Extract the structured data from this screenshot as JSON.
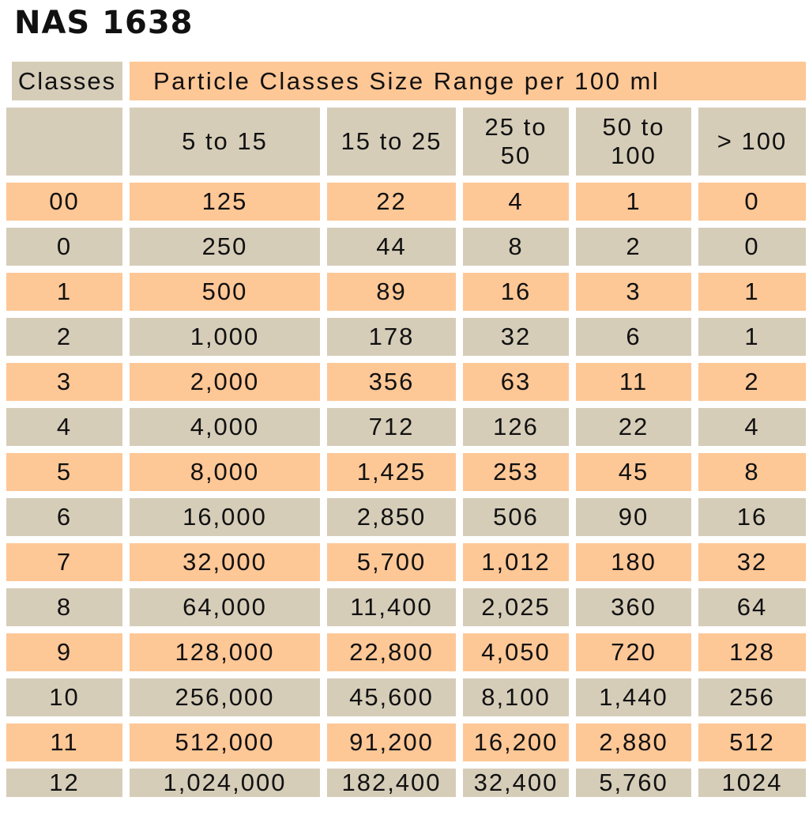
{
  "title": "NAS 1638",
  "table": {
    "header": {
      "classes": "Classes",
      "range": "Particle Classes Size Range per 100 ml"
    },
    "size_columns": [
      "5 to 15",
      "15 to 25",
      "25 to 50",
      "50 to 100",
      "> 100"
    ],
    "rows": [
      {
        "cls": "00",
        "v": [
          "125",
          "22",
          "4",
          "1",
          "0"
        ]
      },
      {
        "cls": "0",
        "v": [
          "250",
          "44",
          "8",
          "2",
          "0"
        ]
      },
      {
        "cls": "1",
        "v": [
          "500",
          "89",
          "16",
          "3",
          "1"
        ]
      },
      {
        "cls": "2",
        "v": [
          "1,000",
          "178",
          "32",
          "6",
          "1"
        ]
      },
      {
        "cls": "3",
        "v": [
          "2,000",
          "356",
          "63",
          "11",
          "2"
        ]
      },
      {
        "cls": "4",
        "v": [
          "4,000",
          "712",
          "126",
          "22",
          "4"
        ]
      },
      {
        "cls": "5",
        "v": [
          "8,000",
          "1,425",
          "253",
          "45",
          "8"
        ]
      },
      {
        "cls": "6",
        "v": [
          "16,000",
          "2,850",
          "506",
          "90",
          "16"
        ]
      },
      {
        "cls": "7",
        "v": [
          "32,000",
          "5,700",
          "1,012",
          "180",
          "32"
        ]
      },
      {
        "cls": "8",
        "v": [
          "64,000",
          "11,400",
          "2,025",
          "360",
          "64"
        ]
      },
      {
        "cls": "9",
        "v": [
          "128,000",
          "22,800",
          "4,050",
          "720",
          "128"
        ]
      },
      {
        "cls": "10",
        "v": [
          "256,000",
          "45,600",
          "8,100",
          "1,440",
          "256"
        ]
      },
      {
        "cls": "11",
        "v": [
          "512,000",
          "91,200",
          "16,200",
          "2,880",
          "512"
        ]
      },
      {
        "cls": "12",
        "v": [
          "1,024,000",
          "182,400",
          "32,400",
          "5,760",
          "1024"
        ]
      }
    ]
  },
  "colors": {
    "tan": "#d6cdb9",
    "orange": "#fec796"
  }
}
